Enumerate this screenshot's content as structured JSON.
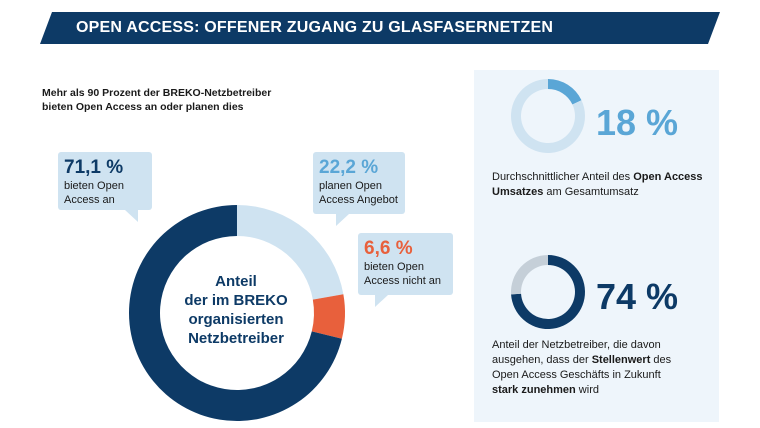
{
  "title": "OPEN ACCESS: OFFENER ZUGANG ZU GLASFASERNETZEN",
  "intro": [
    "Mehr als 90 Prozent der BREKO-Netzbetreiber",
    "bieten Open Access an oder planen dies"
  ],
  "chart_data": [
    {
      "type": "pie",
      "title": "Anteil der im BREKO organisierten Netzbetreiber",
      "center_label": [
        "Anteil",
        "der im BREKO",
        "organisierten",
        "Netzbetreiber"
      ],
      "slices": [
        {
          "label_pct": "22,2 %",
          "label": [
            "planen Open",
            "Access Angebot"
          ],
          "value": 22.2,
          "color": "#cfe3f1"
        },
        {
          "label_pct": "6,6 %",
          "label": [
            "bieten Open",
            "Access nicht an"
          ],
          "value": 6.6,
          "color": "#e8603c"
        },
        {
          "label_pct": "71,1 %",
          "label": [
            "bieten Open",
            "Access an"
          ],
          "value": 71.1,
          "color": "#0d3a66"
        }
      ]
    },
    {
      "type": "pie",
      "value": 18,
      "label": "18 %",
      "colors": {
        "value": "#5aa6d6",
        "rest": "#cfe3f1"
      }
    },
    {
      "type": "pie",
      "value": 74,
      "label": "74 %",
      "colors": {
        "value": "#0d3a66",
        "rest": "#c5cfd8"
      }
    }
  ],
  "stats": [
    {
      "parts": [
        [
          "Durchschnittlicher Anteil des ",
          false
        ],
        [
          "Open Access Umsatzes",
          true
        ],
        [
          " am Gesamtumsatz",
          false
        ]
      ]
    },
    {
      "parts": [
        [
          "Anteil der Netzbetreiber, die davon ausgehen, dass der ",
          false
        ],
        [
          "Stellenwert",
          true
        ],
        [
          " des Open Access Geschäfts in Zukunft ",
          false
        ],
        [
          "stark zunehmen",
          true
        ],
        [
          " wird",
          false
        ]
      ]
    }
  ]
}
